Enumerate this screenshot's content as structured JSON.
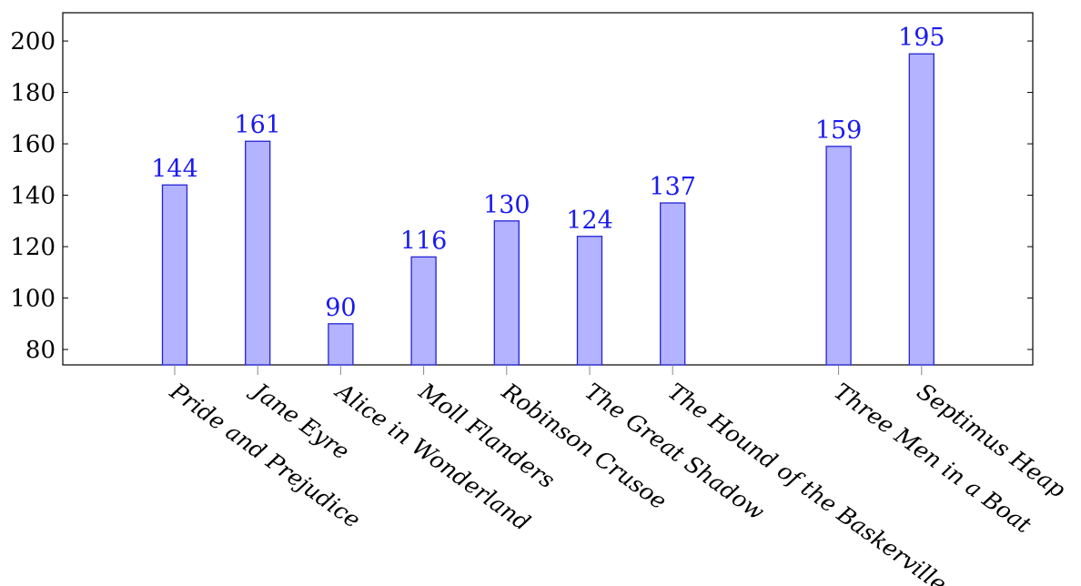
{
  "chart_data": {
    "type": "bar",
    "title": "",
    "xlabel": "",
    "ylabel": "",
    "categories": [
      "Pride and Prejudice",
      "Jane Eyre",
      "Alice in Wonderland",
      "Moll Flanders",
      "Robinson Crusoe",
      "The Great Shadow",
      "The Hound of the Baskervilles",
      "",
      "Three Men in a Boat",
      "Septimus Heap"
    ],
    "values": [
      144,
      161,
      90,
      116,
      130,
      124,
      137,
      null,
      159,
      195
    ],
    "ylim": [
      74,
      211
    ],
    "yticks": [
      80,
      100,
      120,
      140,
      160,
      180,
      200
    ],
    "bar_labels": true,
    "legend": "none",
    "grid": false,
    "colors": {
      "bar_fill": "#b3b3ff",
      "bar_stroke": "#2424d6",
      "label": "#1a1aee"
    }
  }
}
